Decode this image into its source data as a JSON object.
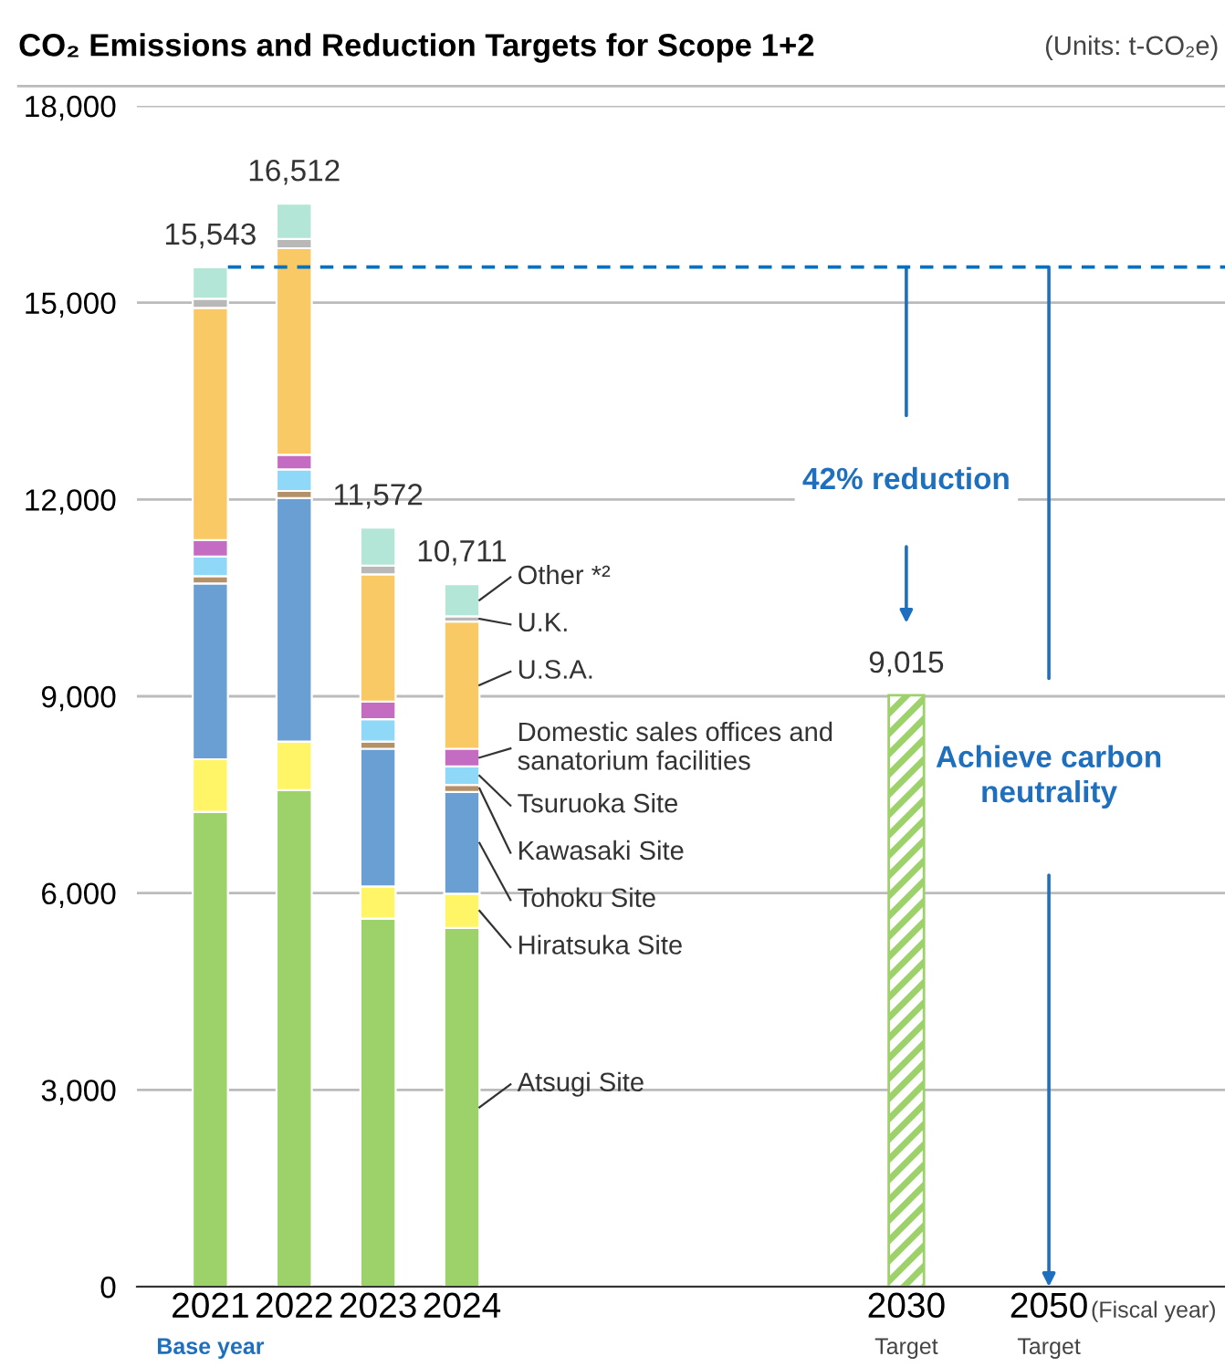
{
  "chart_data": {
    "type": "bar",
    "stacked": true,
    "title": "CO₂ Emissions and Reduction Targets for Scope 1+2",
    "subtitle": "(Units: t-CO₂e)",
    "xlabel": "(Fiscal year)",
    "categories": [
      "2021",
      "2022",
      "2023",
      "2024",
      "2030",
      "2050"
    ],
    "series": [
      {
        "name": "Atsugi Site",
        "color": "#9dd16a",
        "values": [
          7240,
          7570,
          5610,
          5470,
          null,
          null
        ]
      },
      {
        "name": "Hiratsuka Site",
        "color": "#fff566",
        "values": [
          800,
          740,
          490,
          520,
          null,
          null
        ]
      },
      {
        "name": "Tohoku Site",
        "color": "#6a9fd4",
        "values": [
          2680,
          3710,
          2100,
          1550,
          null,
          null
        ]
      },
      {
        "name": "Kawasaki Site",
        "color": "#b5916a",
        "values": [
          110,
          110,
          110,
          110,
          null,
          null
        ]
      },
      {
        "name": "Tsuruoka Site",
        "color": "#8fd8f8",
        "values": [
          300,
          330,
          340,
          280,
          null,
          null
        ]
      },
      {
        "name": "Domestic sales offices and\nsanatorium facilities",
        "color": "#c46bc2",
        "values": [
          250,
          220,
          270,
          270,
          null,
          null
        ]
      },
      {
        "name": "U.S.A.",
        "color": "#f9c965",
        "values": [
          3540,
          3150,
          1940,
          1940,
          null,
          null
        ]
      },
      {
        "name": "U.K.",
        "color": "#b8b8b8",
        "values": [
          140,
          140,
          130,
          80,
          null,
          null
        ]
      },
      {
        "name": "Other *²",
        "color": "#b3e6d6",
        "values": [
          480,
          540,
          580,
          490,
          null,
          null
        ]
      },
      {
        "color": "#9dd16a",
        "values": [
          null,
          null,
          null,
          null,
          9015,
          null
        ],
        "value_labels": [
          null,
          null,
          null,
          null,
          "9,015",
          null
        ]
      }
    ],
    "totals": [
      "15,543",
      "16,512",
      "11,572",
      "10,711"
    ],
    "ylim": [
      0,
      18000
    ],
    "yticks": [
      0,
      {
        "value": 3000,
        "label": "3,000"
      },
      {
        "value": 6000,
        "label": "6,000"
      },
      {
        "value": 9000,
        "label": "9,000"
      },
      {
        "value": 12000,
        "label": "12,000"
      },
      {
        "value": 15000,
        "label": "15,000"
      },
      {
        "value": 18000,
        "label": "18,000"
      }
    ],
    "grid": "y",
    "ref_lines": [
      {
        "axis": "y",
        "value": 15543,
        "color": "#0070c0",
        "line_style": "dashed"
      }
    ],
    "annotations": [
      "42% reduction",
      "Achieve carbon\nneutrality",
      "Base year",
      "Target",
      "Target"
    ]
  }
}
